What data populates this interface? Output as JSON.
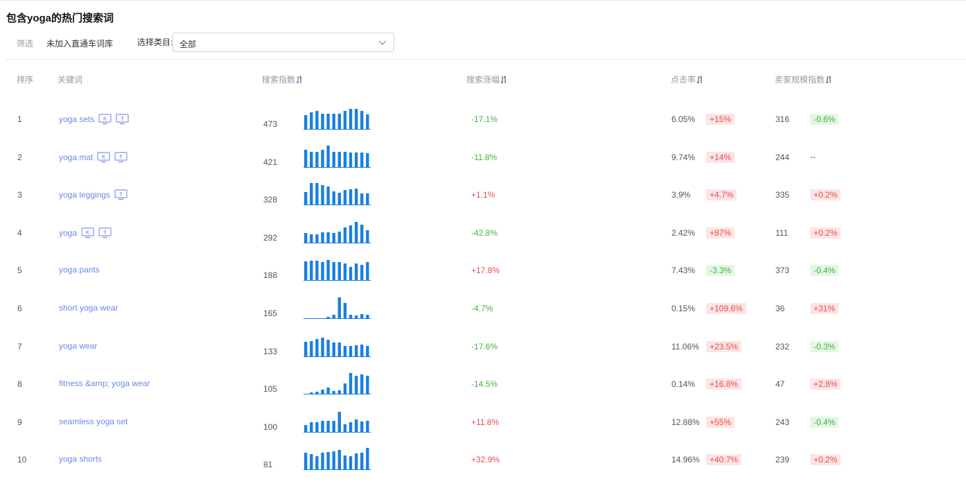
{
  "page": {
    "title": "包含yoga的热门搜索词"
  },
  "filters": {
    "label": "筛选",
    "chip": "未加入直通车词库",
    "category_label": "选择类目:",
    "category_value": "全部"
  },
  "table": {
    "headers": {
      "rank": "排序",
      "keyword": "关键词",
      "search_index": "搜索指数",
      "search_growth": "搜索涨幅",
      "ctr": "点击率",
      "seller_index": "卖家规模指数"
    },
    "rows": [
      {
        "rank": "1",
        "keyword": "yoga sets",
        "badges": [
          "K",
          "T"
        ],
        "search_index": "473",
        "spark": [
          20,
          24,
          26,
          22,
          22,
          22,
          22,
          26,
          29,
          29,
          26,
          21
        ],
        "growth": "-17.1%",
        "growth_dir": "down",
        "ctr": "6.05%",
        "ctr_change": "+15%",
        "ctr_dir": "up",
        "seller_index": "316",
        "seller_change": "-0.6%",
        "seller_dir": "down"
      },
      {
        "rank": "2",
        "keyword": "yoga mat",
        "badges": [
          "K",
          "T"
        ],
        "search_index": "421",
        "spark": [
          25,
          22,
          22,
          25,
          31,
          22,
          22,
          22,
          21,
          21,
          21,
          20
        ],
        "growth": "-11.8%",
        "growth_dir": "down",
        "ctr": "9.74%",
        "ctr_change": "+14%",
        "ctr_dir": "up",
        "seller_index": "244",
        "seller_change": "--",
        "seller_dir": "none"
      },
      {
        "rank": "3",
        "keyword": "yoga leggings",
        "badges": [
          "T"
        ],
        "search_index": "328",
        "spark": [
          18,
          31,
          31,
          28,
          26,
          19,
          17,
          21,
          22,
          23,
          16,
          16
        ],
        "growth": "+1.1%",
        "growth_dir": "up",
        "ctr": "3.9%",
        "ctr_change": "+4.7%",
        "ctr_dir": "up",
        "seller_index": "335",
        "seller_change": "+0.2%",
        "seller_dir": "up"
      },
      {
        "rank": "4",
        "keyword": "yoga",
        "badges": [
          "K",
          "T"
        ],
        "search_index": "292",
        "spark": [
          14,
          12,
          12,
          15,
          15,
          14,
          16,
          22,
          25,
          30,
          26,
          18
        ],
        "growth": "-42.8%",
        "growth_dir": "down",
        "ctr": "2.42%",
        "ctr_change": "+87%",
        "ctr_dir": "up",
        "seller_index": "111",
        "seller_change": "+0.2%",
        "seller_dir": "up"
      },
      {
        "rank": "5",
        "keyword": "yoga pants",
        "badges": [],
        "search_index": "188",
        "spark": [
          27,
          28,
          28,
          26,
          29,
          26,
          26,
          24,
          19,
          24,
          22,
          26
        ],
        "growth": "+17.8%",
        "growth_dir": "up",
        "ctr": "7.43%",
        "ctr_change": "-3.3%",
        "ctr_dir": "down",
        "seller_index": "373",
        "seller_change": "-0.4%",
        "seller_dir": "down"
      },
      {
        "rank": "6",
        "keyword": "short yoga wear",
        "badges": [],
        "search_index": "165",
        "spark": [
          0,
          0,
          0,
          0,
          2,
          5,
          30,
          22,
          5,
          4,
          6,
          5
        ],
        "growth": "-4.7%",
        "growth_dir": "down",
        "ctr": "0.15%",
        "ctr_change": "+109.6%",
        "ctr_dir": "up",
        "seller_index": "36",
        "seller_change": "+31%",
        "seller_dir": "up"
      },
      {
        "rank": "7",
        "keyword": "yoga wear",
        "badges": [],
        "search_index": "133",
        "spark": [
          21,
          22,
          25,
          27,
          24,
          20,
          20,
          15,
          15,
          16,
          17,
          15
        ],
        "growth": "-17.6%",
        "growth_dir": "down",
        "ctr": "11.06%",
        "ctr_change": "+23.5%",
        "ctr_dir": "up",
        "seller_index": "232",
        "seller_change": "-0.3%",
        "seller_dir": "down"
      },
      {
        "rank": "8",
        "keyword": "fitness &amp; yoga wear",
        "badges": [],
        "search_index": "105",
        "spark": [
          0,
          2,
          3,
          6,
          9,
          4,
          5,
          15,
          30,
          26,
          28,
          26
        ],
        "growth": "-14.5%",
        "growth_dir": "down",
        "ctr": "0.14%",
        "ctr_change": "+16.8%",
        "ctr_dir": "up",
        "seller_index": "47",
        "seller_change": "+2.8%",
        "seller_dir": "up"
      },
      {
        "rank": "9",
        "keyword": "seamless yoga set",
        "badges": [],
        "search_index": "100",
        "spark": [
          10,
          14,
          14,
          16,
          16,
          16,
          29,
          11,
          14,
          18,
          15,
          16
        ],
        "growth": "+11.8%",
        "growth_dir": "up",
        "ctr": "12.88%",
        "ctr_change": "+55%",
        "ctr_dir": "up",
        "seller_index": "243",
        "seller_change": "-0.4%",
        "seller_dir": "down"
      },
      {
        "rank": "10",
        "keyword": "yoga shorts",
        "badges": [],
        "search_index": "81",
        "spark": [
          24,
          22,
          19,
          24,
          25,
          26,
          28,
          20,
          19,
          23,
          24,
          31
        ],
        "growth": "+32.9%",
        "growth_dir": "up",
        "ctr": "14.96%",
        "ctr_change": "+40.7%",
        "ctr_dir": "up",
        "seller_index": "239",
        "seller_change": "+0.2%",
        "seller_dir": "up"
      }
    ]
  },
  "colors": {
    "bar": "#1a7fe0",
    "keyword_link": "#6a89e8",
    "up": "#e54d4d",
    "down": "#46b046",
    "badge": "#7e96e6"
  },
  "icons": {
    "sort": "sort-icon",
    "dropdown": "chevron-down-icon",
    "badge": "monitor-badge-icon"
  }
}
